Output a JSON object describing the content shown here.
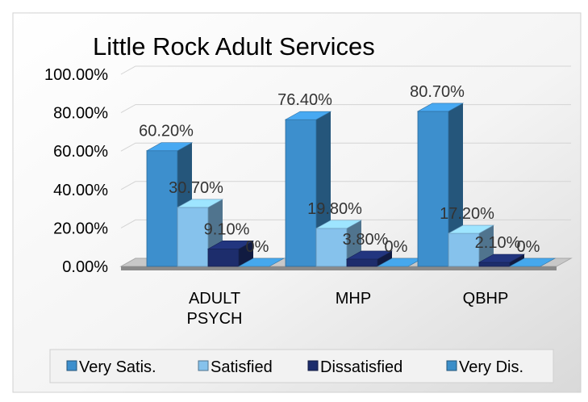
{
  "chart_data": {
    "type": "bar",
    "title": "Little Rock Adult Services",
    "categories": [
      "ADULT PSYCH",
      "MHP",
      "QBHP"
    ],
    "series": [
      {
        "name": "Very Satis.",
        "values": [
          60.2,
          76.4,
          80.7
        ],
        "labels": [
          "60.20%",
          "76.40%",
          "80.70%"
        ],
        "color": "#3d8fcd"
      },
      {
        "name": "Satisfied",
        "values": [
          30.7,
          19.8,
          17.2
        ],
        "labels": [
          "30.70%",
          "19.80%",
          "17.20%"
        ],
        "color": "#86c2ec"
      },
      {
        "name": "Dissatisfied",
        "values": [
          9.1,
          3.8,
          2.1
        ],
        "labels": [
          "9.10%",
          "3.80%",
          "2.10%"
        ],
        "color": "#1d2d6c"
      },
      {
        "name": "Very Dis.",
        "values": [
          0,
          0,
          0
        ],
        "labels": [
          "0%",
          "0%",
          "0%"
        ],
        "color": "#3b8ec9"
      }
    ],
    "y_ticks": [
      "0.00%",
      "20.00%",
      "40.00%",
      "60.00%",
      "80.00%",
      "100.00%"
    ],
    "ylim": [
      0,
      100
    ],
    "grid": true,
    "legend_position": "bottom",
    "style": "3d-clustered-column"
  }
}
